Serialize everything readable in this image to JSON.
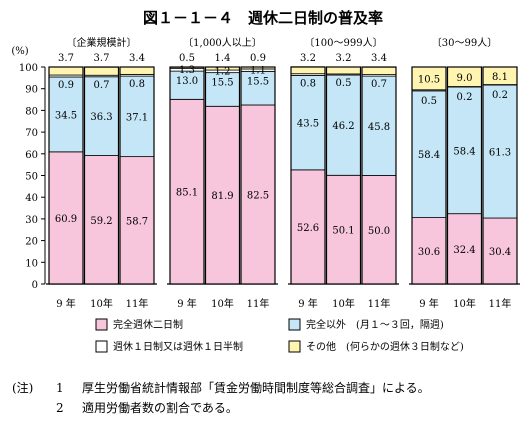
{
  "chart_data": {
    "type": "bar",
    "stacked": true,
    "title": "図１－１－４　週休二日制の普及率",
    "ylabel": "(%)",
    "ylim": [
      0,
      100
    ],
    "yticks": [
      0,
      10,
      20,
      30,
      40,
      50,
      60,
      70,
      80,
      90,
      100
    ],
    "categories": [
      "9 年",
      "10年",
      "11年"
    ],
    "groups": [
      {
        "name": "〔企業規模計〕",
        "values": {
          "complete": [
            60.9,
            59.2,
            58.7
          ],
          "other_than_complete": [
            34.5,
            36.3,
            37.1
          ],
          "once_per_month": [
            0.9,
            0.7,
            0.8
          ],
          "other": [
            3.7,
            3.7,
            3.4
          ]
        }
      },
      {
        "name": "〔1,000人以上〕",
        "values": {
          "complete": [
            85.1,
            81.9,
            82.5
          ],
          "other_than_complete": [
            13.0,
            15.5,
            15.5
          ],
          "once_per_month": [
            1.3,
            1.2,
            1.1
          ],
          "other": [
            0.5,
            1.4,
            0.9
          ]
        }
      },
      {
        "name": "〔100～999人〕",
        "values": {
          "complete": [
            52.6,
            50.1,
            50.0
          ],
          "other_than_complete": [
            43.5,
            46.2,
            45.8
          ],
          "once_per_month": [
            0.8,
            0.5,
            0.7
          ],
          "other": [
            3.2,
            3.2,
            3.4
          ]
        }
      },
      {
        "name": "〔30～99人〕",
        "values": {
          "complete": [
            30.6,
            32.4,
            30.4
          ],
          "other_than_complete": [
            58.4,
            58.4,
            61.3
          ],
          "once_per_month": [
            0.5,
            0.2,
            0.2
          ],
          "other": [
            10.5,
            9.0,
            8.1
          ]
        }
      }
    ],
    "series": [
      {
        "key": "complete",
        "name": "完全週休二日制",
        "color": "#f7c6dc"
      },
      {
        "key": "other_than_complete",
        "name": "完全以外　(月１～３回，隔週)",
        "color": "#c4e6f7"
      },
      {
        "key": "once_per_month",
        "name": "週休１日制又は週休１日半制",
        "color": "#ffffff"
      },
      {
        "key": "other",
        "name": "その他　(何らかの週休３日制など)",
        "color": "#fff5b0"
      }
    ]
  },
  "notes": {
    "prefix": "(注)",
    "items": [
      {
        "num": "1",
        "text": "厚生労働省統計情報部「賃金労働時間制度等総合調査」による。"
      },
      {
        "num": "2",
        "text": "適用労働者数の割合である。"
      }
    ]
  }
}
